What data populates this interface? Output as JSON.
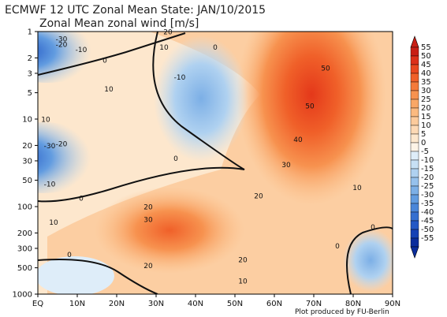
{
  "header": {
    "title": "ECMWF 12 UTC Zonal Mean State: JAN/10/2015",
    "subtitle": "Zonal Mean zonal wind [m/s]"
  },
  "credit": "Plot produced by FU-Berlin",
  "chart_data": {
    "type": "heatmap",
    "title": "ECMWF 12 UTC Zonal Mean State: JAN/10/2015",
    "subtitle": "Zonal Mean zonal wind [m/s]",
    "x_ticks": [
      "EQ",
      "10N",
      "20N",
      "30N",
      "40N",
      "50N",
      "60N",
      "70N",
      "80N",
      "90N"
    ],
    "x_range": [
      0,
      90
    ],
    "y_ticks": [
      "1",
      "2",
      "3",
      "5",
      "10",
      "20",
      "30",
      "50",
      "100",
      "200",
      "300",
      "500",
      "1000"
    ],
    "y_range": [
      1,
      1000
    ],
    "y_scale": "log",
    "colorbar": {
      "levels": [
        55,
        50,
        45,
        40,
        35,
        30,
        25,
        20,
        15,
        10,
        5,
        0,
        -5,
        -10,
        -15,
        -20,
        -25,
        -30,
        -35,
        -40,
        -45,
        -50,
        -55
      ],
      "colors": [
        "#c81e14",
        "#dc3019",
        "#e9481f",
        "#f06029",
        "#f47a3a",
        "#f7924f",
        "#f9a766",
        "#fbba80",
        "#fccb9c",
        "#fdd9b5",
        "#fde7cd",
        "#fdf3e6",
        "#deedf9",
        "#c7e0f5",
        "#afd1f0",
        "#96c1ec",
        "#7cafe6",
        "#629ce0",
        "#4a86d9",
        "#356fd0",
        "#2358c5",
        "#1642b5",
        "#0b2d9c"
      ]
    },
    "features": [
      {
        "label": "50",
        "value": 50,
        "lat": 73,
        "p": 2.6
      },
      {
        "label": "50",
        "value": 50,
        "lat": 69,
        "p": 7
      },
      {
        "label": "40",
        "value": 40,
        "lat": 66,
        "p": 17
      },
      {
        "label": "30",
        "value": 30,
        "lat": 63,
        "p": 33
      },
      {
        "label": "20",
        "value": 20,
        "lat": 56,
        "p": 75
      },
      {
        "label": "10",
        "value": 10,
        "lat": 81,
        "p": 60
      },
      {
        "label": "20",
        "value": 20,
        "lat": 28,
        "p": 100
      },
      {
        "label": "30",
        "value": 30,
        "lat": 28,
        "p": 140
      },
      {
        "label": "20",
        "value": 20,
        "lat": 52,
        "p": 400
      },
      {
        "label": "20",
        "value": 20,
        "lat": 28,
        "p": 470
      },
      {
        "label": "10",
        "value": 10,
        "lat": 52,
        "p": 700
      },
      {
        "label": "10",
        "value": 10,
        "lat": 4,
        "p": 150
      },
      {
        "label": "-10",
        "value": -10,
        "lat": 36,
        "p": 3.3
      },
      {
        "label": "10",
        "value": 10,
        "lat": 18,
        "p": 4.5
      },
      {
        "label": "10",
        "value": 10,
        "lat": 2,
        "p": 10
      },
      {
        "label": "20",
        "value": 20,
        "lat": 33,
        "p": 1
      },
      {
        "label": "10",
        "value": 10,
        "lat": 32,
        "p": 1.5
      },
      {
        "label": "0",
        "value": 0,
        "lat": 45,
        "p": 1.5
      },
      {
        "label": "-30",
        "value": -30,
        "lat": 6,
        "p": 1.2
      },
      {
        "label": "-20",
        "value": -20,
        "lat": 6,
        "p": 1.4
      },
      {
        "label": "-10",
        "value": -10,
        "lat": 11,
        "p": 1.6
      },
      {
        "label": "0",
        "value": 0,
        "lat": 17,
        "p": 2.1
      },
      {
        "label": "-30",
        "value": -30,
        "lat": 3,
        "p": 20
      },
      {
        "label": "-20",
        "value": -20,
        "lat": 6,
        "p": 19
      },
      {
        "label": "0",
        "value": 0,
        "lat": 35,
        "p": 28
      },
      {
        "label": "-10",
        "value": -10,
        "lat": 3,
        "p": 55
      },
      {
        "label": "0",
        "value": 0,
        "lat": 11,
        "p": 80
      },
      {
        "label": "0",
        "value": 0,
        "lat": 76,
        "p": 280
      },
      {
        "label": "0",
        "value": 0,
        "lat": 85,
        "p": 170
      },
      {
        "label": "0",
        "value": 0,
        "lat": 8,
        "p": 350
      }
    ]
  }
}
